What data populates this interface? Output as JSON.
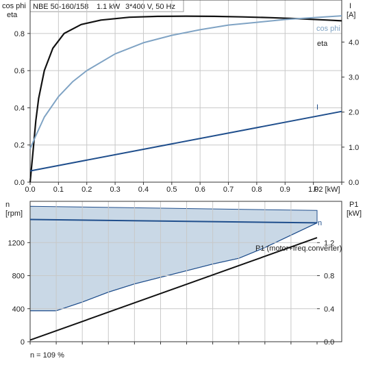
{
  "header": {
    "title": "NBE 50-160/158",
    "power": "1.1 kW",
    "supply": "3*400 V, 50 Hz"
  },
  "footer": {
    "note": "n = 109 %"
  },
  "colors": {
    "eta": "#111111",
    "cos_phi": "#7fa3c4",
    "current": "#1f4e8c",
    "speed": "#1f4e8c",
    "speed_band_fill": "#c9d8e6",
    "p1": "#111111",
    "grid": "#c8c8c8",
    "axis": "#333333"
  },
  "chart_data": [
    {
      "type": "line",
      "x_label": "P2 [kW]",
      "x_ticks": [
        0,
        0.1,
        0.2,
        0.3,
        0.4,
        0.5,
        0.6,
        0.7,
        0.8,
        0.9,
        1.0
      ],
      "xlim": [
        0,
        1.1
      ],
      "left_axis": {
        "label_lines": [
          "cos phi",
          "eta"
        ],
        "ticks": [
          0.0,
          0.2,
          0.4,
          0.6,
          0.8
        ],
        "ylim": [
          0,
          0.98
        ]
      },
      "right_axis": {
        "label_lines": [
          "I",
          "[A]"
        ],
        "ticks": [
          0.0,
          1.0,
          2.0,
          3.0,
          4.0
        ],
        "ylim": [
          0,
          5.2
        ]
      },
      "grid": true,
      "series": [
        {
          "name": "eta",
          "axis": "left",
          "x": [
            0,
            0.01,
            0.02,
            0.03,
            0.05,
            0.08,
            0.12,
            0.18,
            0.25,
            0.35,
            0.45,
            0.55,
            0.65,
            0.75,
            0.85,
            0.95,
            1.05,
            1.1
          ],
          "y": [
            0.0,
            0.16,
            0.33,
            0.45,
            0.6,
            0.72,
            0.8,
            0.848,
            0.872,
            0.887,
            0.892,
            0.893,
            0.892,
            0.889,
            0.885,
            0.879,
            0.872,
            0.868
          ]
        },
        {
          "name": "cos phi",
          "axis": "left",
          "x": [
            0,
            0.02,
            0.05,
            0.1,
            0.15,
            0.2,
            0.3,
            0.4,
            0.5,
            0.6,
            0.7,
            0.8,
            0.9,
            1.0,
            1.1
          ],
          "y": [
            0.18,
            0.25,
            0.35,
            0.46,
            0.54,
            0.6,
            0.69,
            0.75,
            0.79,
            0.82,
            0.845,
            0.86,
            0.875,
            0.885,
            0.895
          ]
        },
        {
          "name": "I",
          "axis": "right",
          "x": [
            0,
            1.1
          ],
          "y": [
            0.32,
            2.02
          ]
        }
      ]
    },
    {
      "type": "area",
      "x_ticks": [
        0,
        0.1,
        0.2,
        0.3,
        0.4,
        0.5,
        0.6,
        0.7,
        0.8,
        0.9,
        1.0
      ],
      "xlim": [
        0,
        1.1
      ],
      "left_axis": {
        "label_lines": [
          "n",
          "[rpm]"
        ],
        "ticks": [
          0,
          400,
          800,
          1200
        ],
        "ylim": [
          0,
          1700
        ]
      },
      "right_axis": {
        "label_lines": [
          "P1",
          "[kW]"
        ],
        "ticks": [
          0.0,
          0.4,
          0.8,
          1.2
        ],
        "ylim": [
          0,
          1.7
        ]
      },
      "grid": true,
      "series": [
        {
          "name": "n",
          "axis": "left",
          "x": [
            0,
            1.1
          ],
          "y": [
            1480,
            1440
          ]
        },
        {
          "name": "P1 (motor+freq.converter)",
          "axis": "right",
          "x": [
            0,
            1.1
          ],
          "y": [
            0.02,
            1.26
          ]
        }
      ],
      "speed_band": {
        "upper": {
          "x": [
            0,
            1.1
          ],
          "y": [
            1640,
            1590
          ]
        },
        "lower": {
          "x": [
            0,
            0.1,
            0.2,
            0.3,
            0.4,
            0.5,
            0.6,
            0.7,
            0.8,
            0.9,
            1.0,
            1.1
          ],
          "y": [
            375,
            375,
            480,
            600,
            700,
            780,
            860,
            940,
            1010,
            1140,
            1290,
            1440
          ]
        }
      }
    }
  ]
}
